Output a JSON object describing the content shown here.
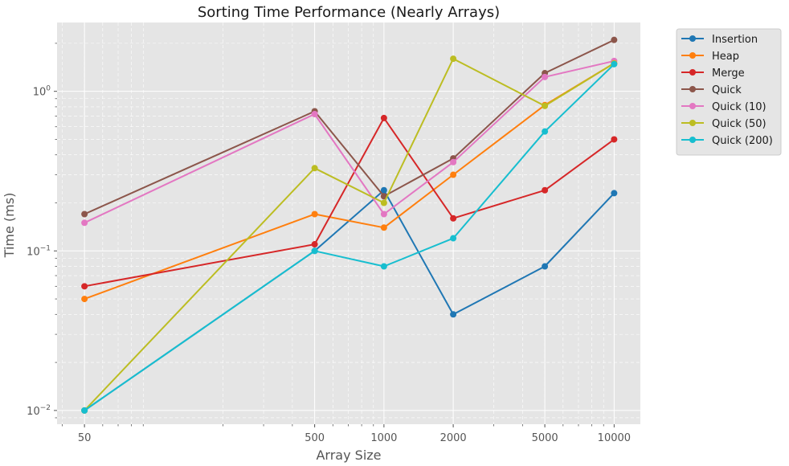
{
  "chart_data": {
    "type": "line",
    "title": "Sorting Time Performance (Nearly Arrays)",
    "xlabel": "Array Size",
    "ylabel": "Time (ms)",
    "x_scale": "log",
    "y_scale": "log",
    "x": [
      50,
      500,
      1000,
      2000,
      5000,
      10000
    ],
    "x_tick_labels": [
      "50",
      "500",
      "1000",
      "2000",
      "5000",
      "10000"
    ],
    "y_tick_values": [
      0.01,
      0.1,
      1
    ],
    "xlim": [
      38,
      13000
    ],
    "ylim": [
      0.0082,
      2.7
    ],
    "grid": true,
    "legend_position": "outside-top-right",
    "series": [
      {
        "name": "Insertion",
        "color": "#1f77b4",
        "values": [
          0.01,
          0.1,
          0.24,
          0.04,
          0.08,
          0.23
        ]
      },
      {
        "name": "Heap",
        "color": "#ff7f0e",
        "values": [
          0.05,
          0.17,
          0.14,
          0.3,
          0.82,
          1.5
        ]
      },
      {
        "name": "Merge",
        "color": "#d62728",
        "values": [
          0.06,
          0.11,
          0.68,
          0.16,
          0.24,
          0.5
        ]
      },
      {
        "name": "Quick",
        "color": "#8c564b",
        "values": [
          0.17,
          0.75,
          0.22,
          0.38,
          1.3,
          2.1
        ]
      },
      {
        "name": "Quick (10)",
        "color": "#e377c2",
        "values": [
          0.15,
          0.72,
          0.17,
          0.36,
          1.23,
          1.55
        ]
      },
      {
        "name": "Quick (50)",
        "color": "#bcbd22",
        "values": [
          0.01,
          0.33,
          0.2,
          1.6,
          0.81,
          1.5
        ]
      },
      {
        "name": "Quick (200)",
        "color": "#17becf",
        "values": [
          0.01,
          0.1,
          0.08,
          0.12,
          0.56,
          1.48
        ]
      }
    ]
  }
}
